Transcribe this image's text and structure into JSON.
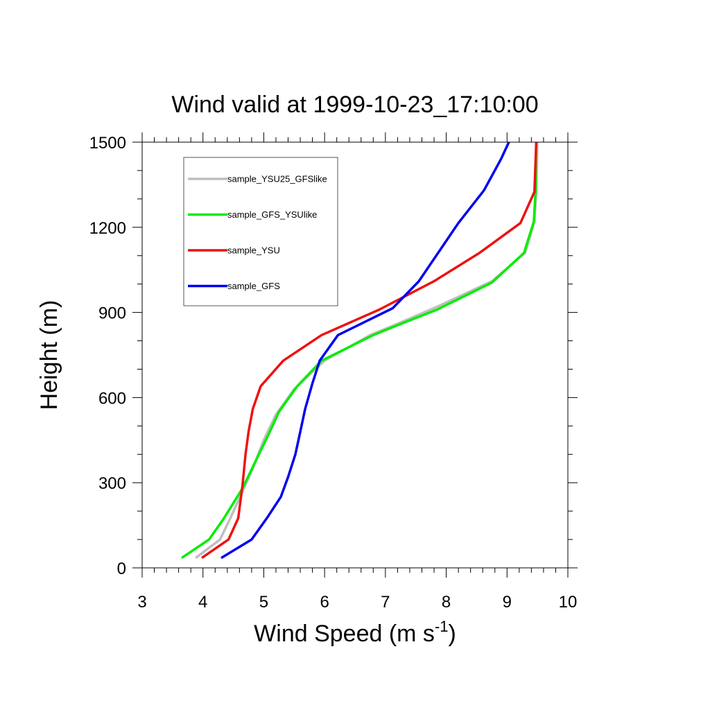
{
  "chart_data": {
    "type": "line",
    "title": "Wind valid at 1999-10-23_17:10:00",
    "xlabel": "Wind Speed (m s",
    "xlabel_sup": "-1",
    "xlabel_end": ")",
    "ylabel": "Height (m)",
    "xlim": [
      3,
      10
    ],
    "ylim": [
      0,
      1500
    ],
    "xticks": [
      3,
      4,
      5,
      6,
      7,
      8,
      9,
      10
    ],
    "xtick_labels": [
      "3",
      "4",
      "5",
      "6",
      "7",
      "8",
      "9",
      "10"
    ],
    "yticks": [
      0,
      300,
      600,
      900,
      1200,
      1500
    ],
    "ytick_labels": [
      "0",
      "300",
      "600",
      "900",
      "1200",
      "1500"
    ],
    "legend_placement": "top-left",
    "grid": false,
    "series": [
      {
        "name": "sample_YSU25_GFSlike",
        "color": "#bfbfbf",
        "points": [
          [
            3.88,
            35
          ],
          [
            4.28,
            100
          ],
          [
            4.45,
            175
          ],
          [
            4.8,
            340
          ],
          [
            5.0,
            450
          ],
          [
            5.2,
            540
          ],
          [
            5.5,
            630
          ],
          [
            6.0,
            730
          ],
          [
            6.75,
            820
          ],
          [
            7.2,
            860
          ],
          [
            7.85,
            920
          ],
          [
            8.75,
            1010
          ],
          [
            9.3,
            1110
          ],
          [
            9.45,
            1220
          ],
          [
            9.48,
            1330
          ],
          [
            9.5,
            1500
          ]
        ]
      },
      {
        "name": "sample_GFS_YSUlike",
        "color": "#00ee00",
        "points": [
          [
            3.65,
            35
          ],
          [
            4.1,
            100
          ],
          [
            4.33,
            170
          ],
          [
            4.65,
            280
          ],
          [
            4.92,
            400
          ],
          [
            5.1,
            480
          ],
          [
            5.25,
            550
          ],
          [
            5.55,
            640
          ],
          [
            5.95,
            730
          ],
          [
            6.8,
            820
          ],
          [
            7.2,
            855
          ],
          [
            7.85,
            910
          ],
          [
            8.75,
            1005
          ],
          [
            9.28,
            1110
          ],
          [
            9.44,
            1220
          ],
          [
            9.47,
            1330
          ],
          [
            9.48,
            1500
          ]
        ]
      },
      {
        "name": "sample_YSU",
        "color": "#ee1111",
        "points": [
          [
            3.98,
            35
          ],
          [
            4.42,
            100
          ],
          [
            4.58,
            175
          ],
          [
            4.65,
            290
          ],
          [
            4.7,
            400
          ],
          [
            4.75,
            480
          ],
          [
            4.82,
            560
          ],
          [
            4.95,
            640
          ],
          [
            5.32,
            730
          ],
          [
            5.95,
            820
          ],
          [
            6.9,
            910
          ],
          [
            7.8,
            1010
          ],
          [
            8.55,
            1110
          ],
          [
            9.22,
            1215
          ],
          [
            9.45,
            1325
          ],
          [
            9.48,
            1500
          ]
        ]
      },
      {
        "name": "sample_GFS",
        "color": "#0000ee",
        "points": [
          [
            4.3,
            35
          ],
          [
            4.8,
            100
          ],
          [
            5.05,
            175
          ],
          [
            5.28,
            250
          ],
          [
            5.4,
            320
          ],
          [
            5.52,
            400
          ],
          [
            5.6,
            480
          ],
          [
            5.68,
            560
          ],
          [
            5.8,
            650
          ],
          [
            5.92,
            730
          ],
          [
            6.22,
            820
          ],
          [
            7.12,
            915
          ],
          [
            7.55,
            1010
          ],
          [
            8.2,
            1215
          ],
          [
            8.62,
            1330
          ],
          [
            8.9,
            1440
          ],
          [
            9.03,
            1500
          ]
        ]
      }
    ]
  }
}
